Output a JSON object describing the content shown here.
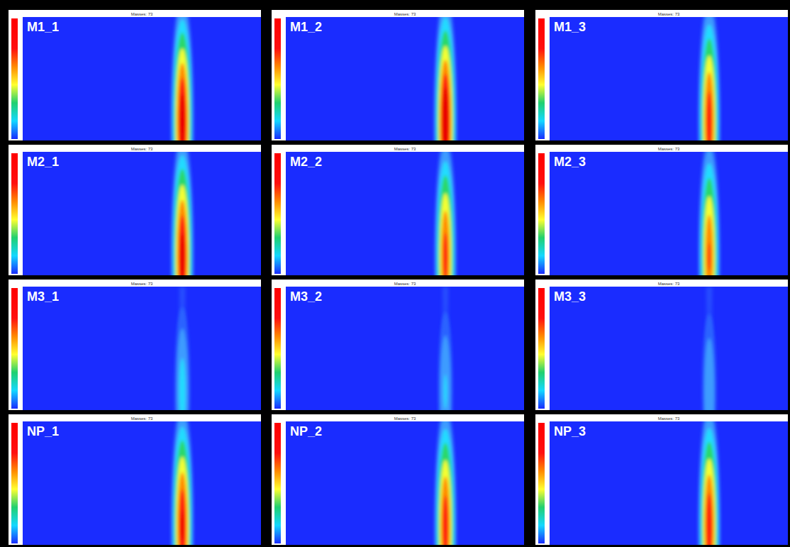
{
  "chart_data": [
    {
      "type": "heatmap",
      "title": "M1_1",
      "subtitle": "Masses: 73",
      "xlim": [
        0,
        100
      ],
      "ylim": [
        0,
        100
      ],
      "tick_labels": false,
      "color_range": [
        0,
        1
      ],
      "peaks": [
        {
          "x": 67,
          "y": 15,
          "intensity": 1.0
        }
      ]
    },
    {
      "type": "heatmap",
      "title": "M1_2",
      "subtitle": "Masses: 73",
      "xlim": [
        0,
        100
      ],
      "ylim": [
        0,
        100
      ],
      "tick_labels": false,
      "color_range": [
        0,
        1
      ],
      "peaks": [
        {
          "x": 67,
          "y": 15,
          "intensity": 1.05
        }
      ]
    },
    {
      "type": "heatmap",
      "title": "M1_3",
      "subtitle": "Masses: 73",
      "xlim": [
        0,
        100
      ],
      "ylim": [
        0,
        100
      ],
      "tick_labels": false,
      "color_range": [
        0,
        1
      ],
      "peaks": [
        {
          "x": 67,
          "y": 15,
          "intensity": 0.88
        }
      ]
    },
    {
      "type": "heatmap",
      "title": "M2_1",
      "subtitle": "Masses: 73",
      "xlim": [
        0,
        100
      ],
      "ylim": [
        0,
        100
      ],
      "tick_labels": false,
      "color_range": [
        0,
        1
      ],
      "peaks": [
        {
          "x": 67,
          "y": 15,
          "intensity": 0.97
        }
      ]
    },
    {
      "type": "heatmap",
      "title": "M2_2",
      "subtitle": "Masses: 73",
      "xlim": [
        0,
        100
      ],
      "ylim": [
        0,
        100
      ],
      "tick_labels": false,
      "color_range": [
        0,
        1
      ],
      "peaks": [
        {
          "x": 67,
          "y": 15,
          "intensity": 0.84
        }
      ]
    },
    {
      "type": "heatmap",
      "title": "M2_3",
      "subtitle": "Masses: 73",
      "xlim": [
        0,
        100
      ],
      "ylim": [
        0,
        100
      ],
      "tick_labels": false,
      "color_range": [
        0,
        1
      ],
      "peaks": [
        {
          "x": 67,
          "y": 15,
          "intensity": 0.8
        }
      ]
    },
    {
      "type": "heatmap",
      "title": "M3_1",
      "subtitle": "Masses: 73",
      "xlim": [
        0,
        100
      ],
      "ylim": [
        0,
        100
      ],
      "tick_labels": false,
      "color_range": [
        0,
        1
      ],
      "peaks": [
        {
          "x": 67,
          "y": 15,
          "intensity": 0.3
        }
      ]
    },
    {
      "type": "heatmap",
      "title": "M3_2",
      "subtitle": "Masses: 73",
      "xlim": [
        0,
        100
      ],
      "ylim": [
        0,
        100
      ],
      "tick_labels": false,
      "color_range": [
        0,
        1
      ],
      "peaks": [
        {
          "x": 67,
          "y": 15,
          "intensity": 0.27
        }
      ]
    },
    {
      "type": "heatmap",
      "title": "M3_3",
      "subtitle": "Masses: 73",
      "xlim": [
        0,
        100
      ],
      "ylim": [
        0,
        100
      ],
      "tick_labels": false,
      "color_range": [
        0,
        1
      ],
      "peaks": [
        {
          "x": 67,
          "y": 15,
          "intensity": 0.26
        }
      ]
    },
    {
      "type": "heatmap",
      "title": "NP_1",
      "subtitle": "Masses: 73",
      "xlim": [
        0,
        100
      ],
      "ylim": [
        0,
        100
      ],
      "tick_labels": false,
      "color_range": [
        0,
        1
      ],
      "peaks": [
        {
          "x": 67,
          "y": 15,
          "intensity": 0.93
        }
      ]
    },
    {
      "type": "heatmap",
      "title": "NP_2",
      "subtitle": "Masses: 73",
      "xlim": [
        0,
        100
      ],
      "ylim": [
        0,
        100
      ],
      "tick_labels": false,
      "color_range": [
        0,
        1
      ],
      "peaks": [
        {
          "x": 67,
          "y": 15,
          "intensity": 0.88
        }
      ]
    },
    {
      "type": "heatmap",
      "title": "NP_3",
      "subtitle": "Masses: 73",
      "xlim": [
        0,
        100
      ],
      "ylim": [
        0,
        100
      ],
      "tick_labels": false,
      "color_range": [
        0,
        1
      ],
      "peaks": [
        {
          "x": 67,
          "y": 15,
          "intensity": 0.9
        }
      ]
    }
  ]
}
